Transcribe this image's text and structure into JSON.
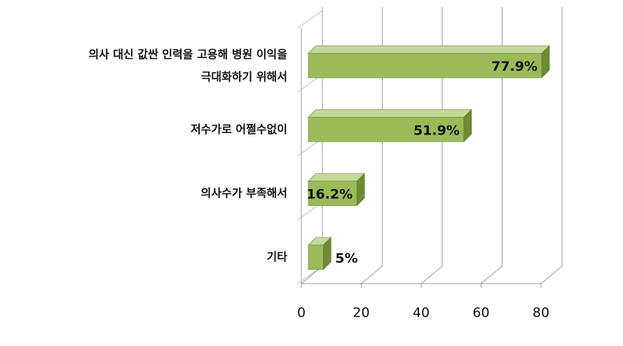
{
  "chart_data": {
    "type": "bar3d_horizontal",
    "categories": [
      "의사 대신 값싼 인력을 고용해 병원 이익을\n극대화하기 위해서",
      "저수가로 어쩔수없이",
      "의사수가 부족해서",
      "기타"
    ],
    "values": [
      77.9,
      51.9,
      16.2,
      5
    ],
    "value_labels": [
      "77.9%",
      "51.9%",
      "16.2%",
      "5%"
    ],
    "color": "#9bbb59",
    "xlim": [
      0,
      80
    ],
    "xticks": [
      0,
      20,
      40,
      60,
      80
    ],
    "grid": true
  }
}
